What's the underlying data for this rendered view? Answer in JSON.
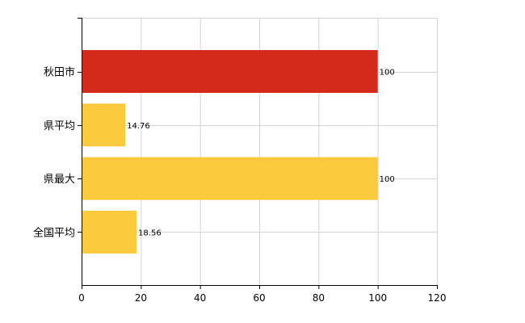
{
  "chart_data": {
    "type": "bar",
    "orientation": "horizontal",
    "categories": [
      "秋田市",
      "県平均",
      "県最大",
      "全国平均"
    ],
    "values": [
      100,
      14.76,
      100,
      18.56
    ],
    "data_labels": [
      "100",
      "14.76",
      "100",
      "18.56"
    ],
    "colors": [
      "#d42a1c",
      "#fac93c",
      "#fac93c",
      "#fac93c"
    ],
    "x_ticks": [
      "0",
      "20",
      "40",
      "60",
      "80",
      "100",
      "120"
    ],
    "xlim": [
      0,
      120
    ],
    "title": "",
    "xlabel": "",
    "ylabel": "",
    "grid": true,
    "grid_color": "#d4d4d4",
    "legend": "none"
  }
}
